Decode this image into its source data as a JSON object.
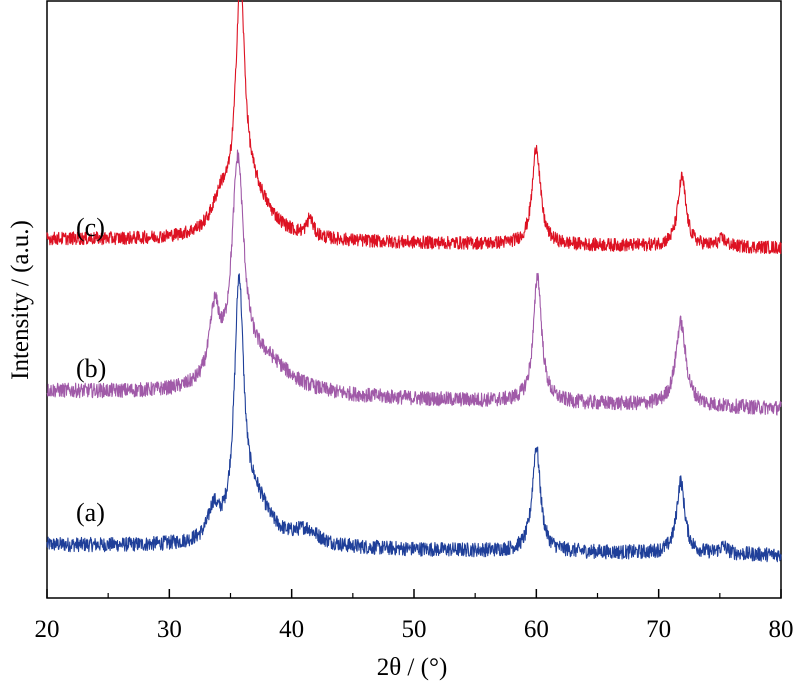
{
  "chart_data": {
    "type": "line",
    "title": "",
    "xlabel_main": "2θ / (°)",
    "ylabel": "Intensity / (a.u.)",
    "xlim": [
      20,
      80
    ],
    "x_ticks_major": [
      20,
      30,
      40,
      50,
      60,
      70,
      80
    ],
    "x_tick_labels": [
      "20",
      "30",
      "40",
      "50",
      "60",
      "70",
      "80"
    ],
    "x_ticks_minor": [
      25,
      35,
      45,
      55,
      65,
      75
    ],
    "y_ticks_shown": false,
    "grid": false,
    "legend": "none",
    "series": [
      {
        "name": "(a)",
        "color": "#1f3f99",
        "baseline": 0.0,
        "slope": -0.7,
        "noise": 2.0,
        "peaks": [
          {
            "x": 33.6,
            "height": 8,
            "width": 0.5
          },
          {
            "x": 35.7,
            "height": 68,
            "width": 0.45
          },
          {
            "x": 37.0,
            "height": 12,
            "width": 1.5
          },
          {
            "x": 41.2,
            "height": 4,
            "width": 1.2
          },
          {
            "x": 60.0,
            "height": 29,
            "width": 0.4
          },
          {
            "x": 71.8,
            "height": 20,
            "width": 0.4
          },
          {
            "x": 75.3,
            "height": 2,
            "width": 0.4
          }
        ]
      },
      {
        "name": "(b)",
        "color": "#a05aa8",
        "baseline": 42.5,
        "slope": -1.2,
        "noise": 2.0,
        "peaks": [
          {
            "x": 33.7,
            "height": 19,
            "width": 0.5
          },
          {
            "x": 35.6,
            "height": 60,
            "width": 0.6
          },
          {
            "x": 37.8,
            "height": 9,
            "width": 2.5
          },
          {
            "x": 60.1,
            "height": 35,
            "width": 0.4
          },
          {
            "x": 71.8,
            "height": 23,
            "width": 0.5
          }
        ]
      },
      {
        "name": "(c)",
        "color": "#dd1122",
        "baseline": 84.5,
        "slope": -0.6,
        "noise": 1.8,
        "peaks": [
          {
            "x": 34.2,
            "height": 8,
            "width": 0.8
          },
          {
            "x": 35.8,
            "height": 62,
            "width": 0.45
          },
          {
            "x": 36.8,
            "height": 12,
            "width": 1.8
          },
          {
            "x": 41.5,
            "height": 5,
            "width": 0.3
          },
          {
            "x": 60.0,
            "height": 27,
            "width": 0.4
          },
          {
            "x": 71.9,
            "height": 19,
            "width": 0.4
          },
          {
            "x": 75.2,
            "height": 2,
            "width": 0.4
          }
        ]
      }
    ]
  }
}
